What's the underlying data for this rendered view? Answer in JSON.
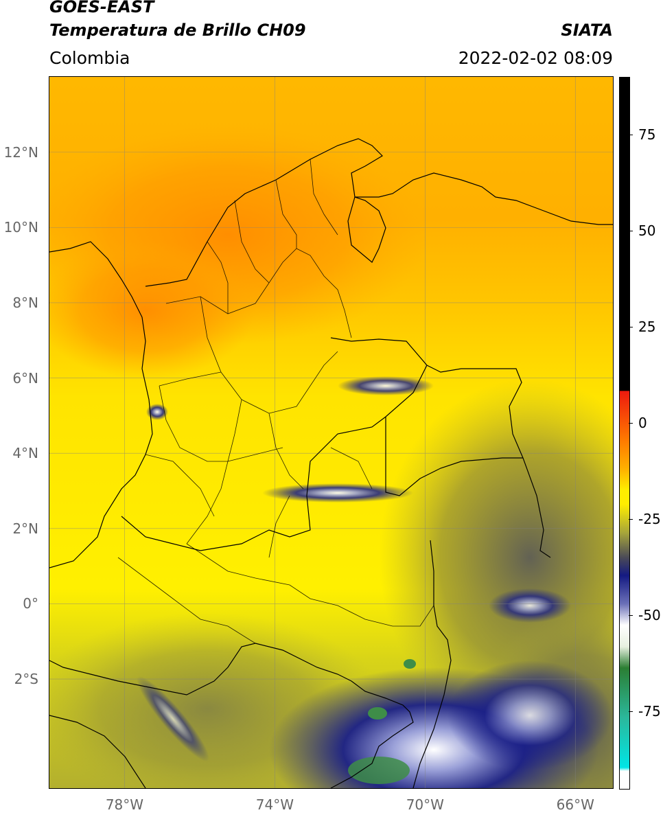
{
  "header": {
    "title_line1": "GOES-EAST",
    "title_line2": "Temperatura de Brillo CH09",
    "subtitle": "Colombia",
    "organization": "SIATA",
    "datetime": "2022-02-02 08:09"
  },
  "map": {
    "lat_labels": [
      {
        "text": "12°N",
        "value": 12
      },
      {
        "text": "10°N",
        "value": 10
      },
      {
        "text": "8°N",
        "value": 8
      },
      {
        "text": "6°N",
        "value": 6
      },
      {
        "text": "4°N",
        "value": 4
      },
      {
        "text": "2°N",
        "value": 2
      },
      {
        "text": "0°",
        "value": 0
      },
      {
        "text": "2°S",
        "value": -2
      }
    ],
    "lon_labels": [
      {
        "text": "78°W",
        "value": -78
      },
      {
        "text": "74°W",
        "value": -74
      },
      {
        "text": "70°W",
        "value": -70
      },
      {
        "text": "66°W",
        "value": -66
      }
    ],
    "extent": {
      "lon_min": -80,
      "lon_max": -65,
      "lat_min": -4.9,
      "lat_max": 14
    }
  },
  "colorbar": {
    "range": [
      -95,
      90
    ],
    "ticks": [
      {
        "text": "75",
        "value": 75
      },
      {
        "text": "50",
        "value": 50
      },
      {
        "text": "25",
        "value": 25
      },
      {
        "text": "0",
        "value": 0
      },
      {
        "text": "-25",
        "value": -25
      },
      {
        "text": "-50",
        "value": -50
      },
      {
        "text": "-75",
        "value": -75
      }
    ],
    "colors": {
      "black": "#000000",
      "red": "#ee1a0e",
      "orange": "#ff9a00",
      "yellow": "#ffee00",
      "olive": "#a7a53a",
      "gray": "#4a4a57",
      "navy": "#141a82",
      "white": "#ffffff",
      "green": "#2b7e33",
      "teal": "#2bb89c",
      "cyan": "#00e5e5"
    }
  }
}
